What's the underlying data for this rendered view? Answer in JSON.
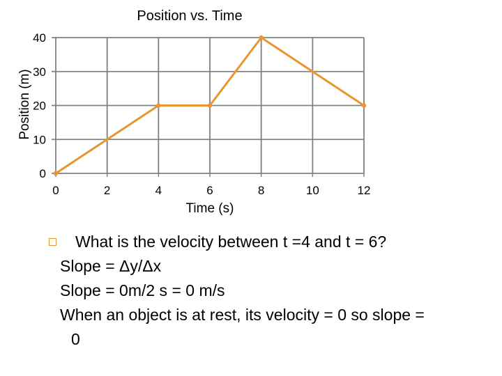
{
  "chart_data": {
    "type": "line",
    "title": "Position vs. Time",
    "xlabel": "Time (s)",
    "ylabel": "Position (m)",
    "x_ticks": [
      "0",
      "2",
      "4",
      "6",
      "8",
      "10",
      "12"
    ],
    "y_ticks": [
      "0",
      "10",
      "20",
      "30",
      "40"
    ],
    "xlim": [
      0,
      12
    ],
    "ylim": [
      0,
      40
    ],
    "grid": true,
    "series": [
      {
        "x": [
          0,
          4,
          6,
          8,
          12
        ],
        "y": [
          0,
          20,
          20,
          40,
          20
        ],
        "color": "#e8962d"
      }
    ]
  },
  "text": {
    "question": "What is the velocity between t =4 and t = 6?",
    "line1": "Slope = Δy/Δx",
    "line2": "Slope = 0m/2 s = 0 m/s",
    "line3": "When an object is at rest, its velocity = 0 so slope =",
    "line4": "0"
  },
  "icons": {
    "bullet": "hollow-square-bullet-icon"
  },
  "colors": {
    "series": "#e8962d",
    "bullet": "#e8962d",
    "grid": "#808080"
  }
}
